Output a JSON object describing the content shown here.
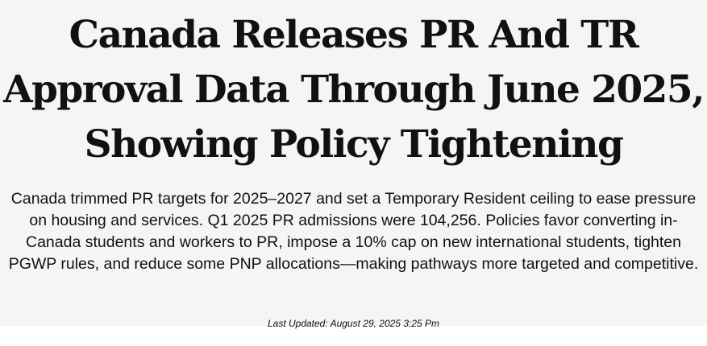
{
  "article": {
    "headline": "Canada Releases PR And TR Approval Data Through June 2025, Showing Policy Tightening",
    "summary": "Canada trimmed PR targets for 2025–2027 and set a Temporary Resident ceiling to ease pressure on housing and services. Q1 2025 PR admissions were 104,256. Policies favor converting in-Canada students and workers to PR, impose a 10% cap on new international students, tighten PGWP rules, and reduce some PNP allocations—making pathways more targeted and competitive.",
    "last_updated": "Last Updated: August 29, 2025 3:25 Pm"
  },
  "colors": {
    "background": "#f5f5f5",
    "text": "#111111"
  }
}
